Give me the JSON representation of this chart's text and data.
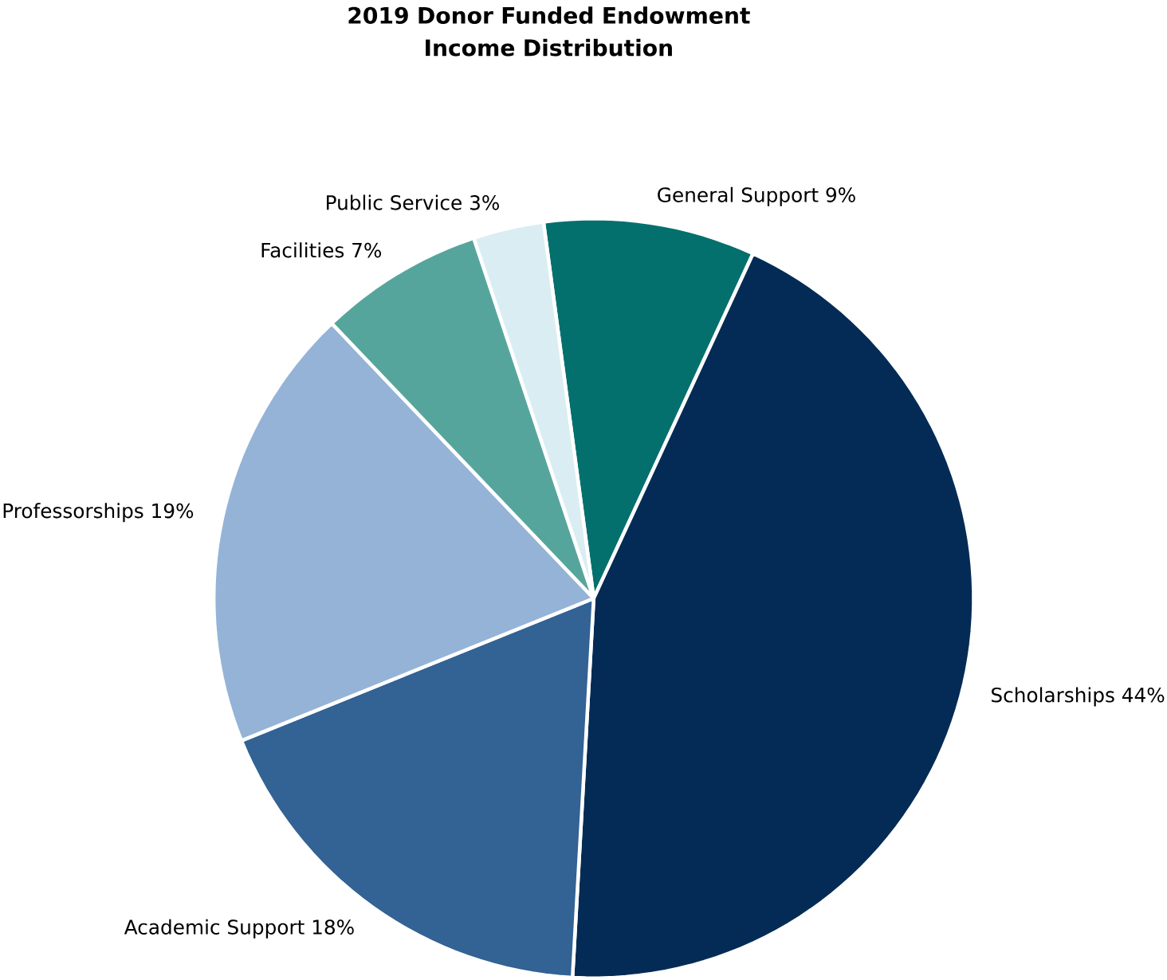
{
  "chart_data": {
    "type": "pie",
    "title": "2019 Donor Funded Endowment Income Distribution",
    "categories": [
      "General Support",
      "Scholarships",
      "Academic Support",
      "Professorships",
      "Facilities",
      "Public Service"
    ],
    "values": [
      9,
      44,
      18,
      19,
      7,
      3
    ],
    "value_labels": [
      "9%",
      "44%",
      "18%",
      "19%",
      "7%",
      "3%"
    ],
    "colors": [
      "#04706e",
      "#032b55",
      "#336294",
      "#95b3d7",
      "#56a59d",
      "#daedf3"
    ]
  }
}
